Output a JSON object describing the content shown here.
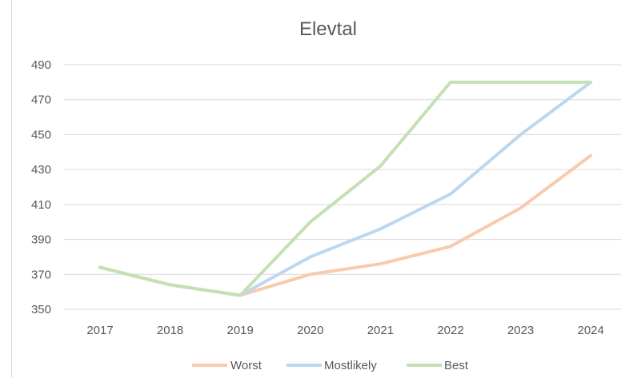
{
  "chart_data": {
    "type": "line",
    "title": "Elevtal",
    "xlabel": "",
    "ylabel": "",
    "categories": [
      "2017",
      "2018",
      "2019",
      "2020",
      "2021",
      "2022",
      "2023",
      "2024"
    ],
    "ylim": [
      350,
      490
    ],
    "yticks": [
      "350",
      "370",
      "390",
      "410",
      "430",
      "450",
      "470",
      "490"
    ],
    "grid": true,
    "legend": "bottom",
    "series": [
      {
        "name": "Worst",
        "color": "#f8cbad",
        "values": [
          374,
          364,
          358,
          370,
          376,
          386,
          408,
          438
        ]
      },
      {
        "name": "Mostlikely",
        "color": "#bdd7ee",
        "values": [
          374,
          364,
          358,
          380,
          396,
          416,
          450,
          480
        ]
      },
      {
        "name": "Best",
        "color": "#c5e0b4",
        "values": [
          374,
          364,
          358,
          400,
          432,
          480,
          480,
          480
        ]
      }
    ]
  }
}
